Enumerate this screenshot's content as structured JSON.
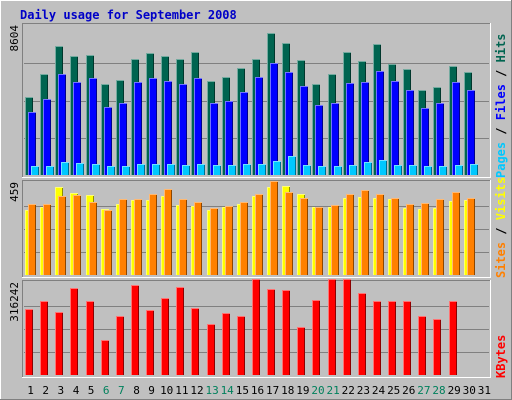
{
  "chart_data": {
    "type": "bar",
    "title": "Daily usage for September 2008",
    "categories": [
      "1",
      "2",
      "3",
      "4",
      "5",
      "6",
      "7",
      "8",
      "9",
      "10",
      "11",
      "12",
      "13",
      "14",
      "15",
      "16",
      "17",
      "18",
      "19",
      "20",
      "21",
      "22",
      "23",
      "24",
      "25",
      "26",
      "27",
      "28",
      "29",
      "30",
      "31"
    ],
    "weekend_days": [
      "6",
      "7",
      "13",
      "14",
      "20",
      "21",
      "27",
      "28"
    ],
    "panels": [
      {
        "ylabel_max": "8604",
        "ylim": [
          0,
          8604
        ],
        "grid": true,
        "side_label": [
          {
            "text": "Pages",
            "color": "#00c8ff"
          },
          {
            "text": " / ",
            "color": "#000000"
          },
          {
            "text": "Files",
            "color": "#0000ff"
          },
          {
            "text": " / ",
            "color": "#000000"
          },
          {
            "text": "Hits",
            "color": "#006450"
          }
        ],
        "series": [
          {
            "name": "Hits",
            "color": "#006450",
            "offset": 0,
            "values": [
              4520,
              5860,
              7440,
              6870,
              6910,
              5240,
              5480,
              6700,
              7060,
              6890,
              6710,
              7130,
              5430,
              5640,
              6200,
              6700,
              8210,
              7650,
              6630,
              5280,
              5860,
              7080,
              6580,
              7560,
              6400,
              6120,
              4920,
              5080,
              6280,
              5960,
              0
            ]
          },
          {
            "name": "Files",
            "color": "#0000ff",
            "offset": 1,
            "values": [
              3640,
              4380,
              5860,
              5390,
              5620,
              3950,
              4130,
              5370,
              5610,
              5440,
              5280,
              5630,
              4160,
              4270,
              4790,
              5650,
              6460,
              5920,
              5130,
              4050,
              4140,
              5290,
              5390,
              6030,
              5420,
              4900,
              3860,
              4150,
              5350,
              4930,
              0
            ]
          },
          {
            "name": "Pages",
            "color": "#00c8ff",
            "offset": 2,
            "values": [
              520,
              520,
              760,
              680,
              620,
              520,
              540,
              620,
              660,
              630,
              590,
              640,
              560,
              560,
              620,
              620,
              790,
              1080,
              580,
              520,
              510,
              560,
              740,
              840,
              600,
              560,
              530,
              520,
              580,
              620,
              0
            ]
          }
        ]
      },
      {
        "ylabel_max": "459",
        "ylim": [
          0,
          459
        ],
        "grid": true,
        "side_label": [
          {
            "text": "Sites",
            "color": "#ff8000"
          },
          {
            "text": " / ",
            "color": "#000000"
          },
          {
            "text": "Visits",
            "color": "#ffff00"
          }
        ],
        "series": [
          {
            "name": "Visits",
            "color": "#ffff00",
            "offset": 0,
            "values": [
              325,
              340,
              437,
              407,
              398,
              331,
              352,
              374,
              372,
              395,
              349,
              342,
              323,
              341,
              356,
              393,
              437,
              446,
              406,
              337,
              337,
              384,
              388,
              384,
              380,
              332,
              331,
              334,
              368,
              376,
              0
            ]
          },
          {
            "name": "Sites",
            "color": "#ff8000",
            "offset": 1,
            "values": [
              352,
              353,
              393,
              398,
              366,
              325,
              378,
              379,
              406,
              429,
              377,
              364,
              332,
              344,
              364,
              406,
              470,
              415,
              382,
              339,
              349,
              405,
              426,
              405,
              383,
              355,
              357,
              379,
              412,
              383,
              0
            ]
          }
        ]
      },
      {
        "ylabel_max": "316242",
        "ylim": [
          0,
          316242
        ],
        "grid": true,
        "side_label": [
          {
            "text": "KBytes",
            "color": "#ff0000"
          }
        ],
        "series": [
          {
            "name": "KBytes",
            "color": "#ff0000",
            "offset": 0,
            "values": [
              226000,
              253000,
              217000,
              300000,
              256000,
              121000,
              204000,
              311000,
              225000,
              264000,
              301000,
              232000,
              175000,
              213000,
              202000,
              331000,
              297000,
              293000,
              164000,
              259000,
              331000,
              331000,
              283000,
              254000,
              256000,
              256000,
              203000,
              194000,
              253000,
              0,
              0
            ]
          }
        ]
      }
    ]
  }
}
